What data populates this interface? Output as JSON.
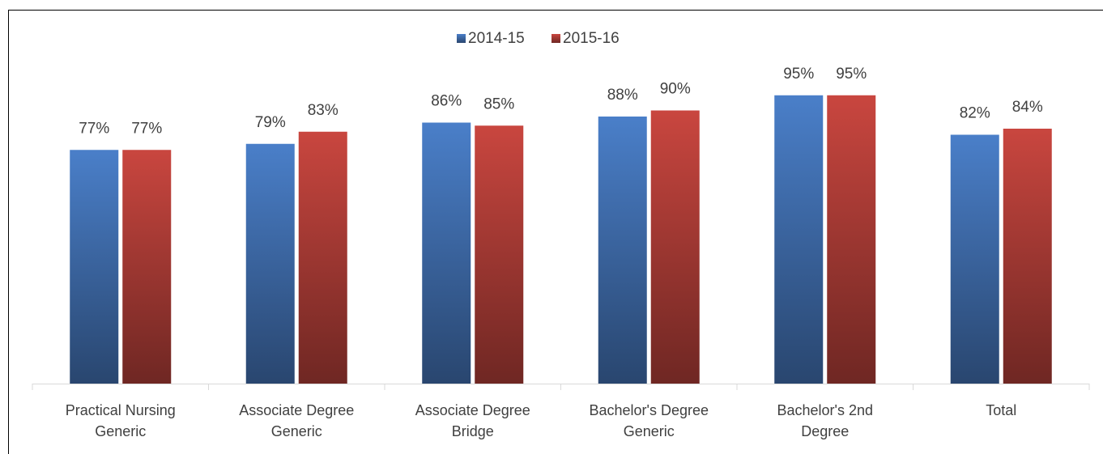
{
  "chart_data": {
    "type": "bar",
    "categories": [
      "Practical Nursing Generic",
      "Associate Degree Generic",
      "Associate Degree Bridge",
      "Bachelor's Degree Generic",
      "Bachelor's 2nd Degree",
      "Total"
    ],
    "series": [
      {
        "name": "2014-15",
        "color": "#4a7fc9",
        "values": [
          77,
          79,
          86,
          88,
          95,
          82
        ],
        "value_labels": [
          "77%",
          "79%",
          "86%",
          "88%",
          "95%",
          "82%"
        ]
      },
      {
        "name": "2015-16",
        "color": "#c9463f",
        "values": [
          77,
          83,
          85,
          90,
          95,
          84
        ],
        "value_labels": [
          "77%",
          "83%",
          "85%",
          "90%",
          "95%",
          "84%"
        ]
      }
    ],
    "ylim": [
      0,
      100
    ],
    "legend": "top"
  }
}
